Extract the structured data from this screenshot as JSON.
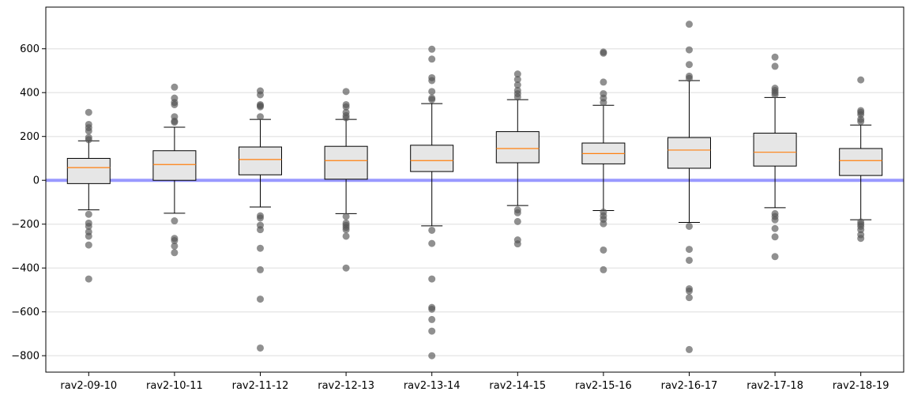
{
  "chart_data": {
    "type": "box",
    "title": "",
    "xlabel": "",
    "ylabel": "",
    "ylim": [
      -875,
      790
    ],
    "yticks": [
      -800,
      -600,
      -400,
      -200,
      0,
      200,
      400,
      600
    ],
    "ytick_labels": [
      "−800",
      "−600",
      "−400",
      "−200",
      "0",
      "200",
      "400",
      "600"
    ],
    "grid": "horizontal",
    "reference_line": {
      "y": 0,
      "color": "#9999ff"
    },
    "colors": {
      "box_fill": "#e6e6e6",
      "median": "#ff7f0e",
      "outlier": "#555555",
      "reference": "#9999ff"
    },
    "categories": [
      "rav2-09-10",
      "rav2-10-11",
      "rav2-11-12",
      "rav2-12-13",
      "rav2-13-14",
      "rav2-14-15",
      "rav2-15-16",
      "rav2-16-17",
      "rav2-17-18",
      "rav2-18-19"
    ],
    "boxes": [
      {
        "category": "rav2-09-10",
        "whislo": -135,
        "q1": -15,
        "med": 58,
        "q3": 100,
        "whishi": 180,
        "fliers": [
          310,
          255,
          240,
          225,
          195,
          185,
          -155,
          -195,
          -210,
          -235,
          -255,
          -295,
          -450
        ]
      },
      {
        "category": "rav2-10-11",
        "whislo": -150,
        "q1": 0,
        "med": 72,
        "q3": 135,
        "whishi": 242,
        "fliers": [
          425,
          375,
          355,
          345,
          290,
          270,
          265,
          -185,
          -265,
          -275,
          -300,
          -330
        ]
      },
      {
        "category": "rav2-11-12",
        "whislo": -122,
        "q1": 25,
        "med": 95,
        "q3": 152,
        "whishi": 278,
        "fliers": [
          408,
          390,
          345,
          340,
          335,
          290,
          -162,
          -172,
          -205,
          -225,
          -310,
          -408,
          -542,
          -765
        ]
      },
      {
        "category": "rav2-12-13",
        "whislo": -152,
        "q1": 5,
        "med": 90,
        "q3": 155,
        "whishi": 278,
        "fliers": [
          405,
          345,
          335,
          310,
          295,
          285,
          -165,
          -195,
          -205,
          -215,
          -225,
          -255,
          -400
        ]
      },
      {
        "category": "rav2-13-14",
        "whislo": -208,
        "q1": 40,
        "med": 90,
        "q3": 160,
        "whishi": 350,
        "fliers": [
          598,
          553,
          468,
          455,
          405,
          375,
          368,
          -228,
          -288,
          -450,
          -580,
          -588,
          -635,
          -688,
          -800
        ]
      },
      {
        "category": "rav2-14-15",
        "whislo": -115,
        "q1": 80,
        "med": 145,
        "q3": 222,
        "whishi": 368,
        "fliers": [
          485,
          460,
          435,
          410,
          395,
          380,
          -135,
          -148,
          -188,
          -272,
          -290
        ]
      },
      {
        "category": "rav2-15-16",
        "whislo": -138,
        "q1": 75,
        "med": 122,
        "q3": 170,
        "whishi": 342,
        "fliers": [
          585,
          580,
          448,
          395,
          375,
          355,
          -145,
          -162,
          -178,
          -198,
          -318,
          -408
        ]
      },
      {
        "category": "rav2-16-17",
        "whislo": -192,
        "q1": 55,
        "med": 138,
        "q3": 195,
        "whishi": 455,
        "fliers": [
          712,
          595,
          528,
          475,
          465,
          -210,
          -315,
          -365,
          -495,
          -505,
          -535,
          -772
        ]
      },
      {
        "category": "rav2-17-18",
        "whislo": -125,
        "q1": 65,
        "med": 128,
        "q3": 215,
        "whishi": 378,
        "fliers": [
          562,
          520,
          420,
          410,
          400,
          390,
          -152,
          -165,
          -180,
          -220,
          -258,
          -348
        ]
      },
      {
        "category": "rav2-18-19",
        "whislo": -180,
        "q1": 22,
        "med": 90,
        "q3": 145,
        "whishi": 252,
        "fliers": [
          458,
          318,
          310,
          300,
          278,
          268,
          -190,
          -200,
          -210,
          -225,
          -248,
          -265
        ]
      }
    ]
  }
}
